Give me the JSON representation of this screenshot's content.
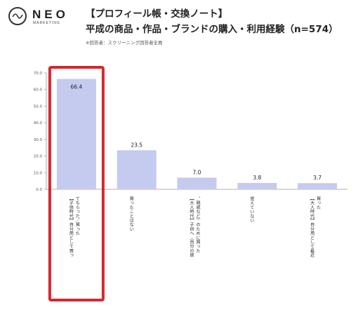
{
  "logo": {
    "name": "NEO",
    "sub": "MARKETING"
  },
  "header": {
    "title_line1": "【プロフィール帳・交換ノート】",
    "title_line2": "平成の商品・作品・ブランドの購入・利用経験（n=574）",
    "note": "※回答者：スクリーニング回答者全員"
  },
  "colors": {
    "bar": "#c5cbef",
    "highlight": "#d8262e",
    "axis": "#999999"
  },
  "chart_data": {
    "type": "bar",
    "categories": [
      "【子供時代】自分用として買ってもらった／買った",
      "買ったことはない",
      "【大人時代】子供へ（自分の娘、親戚など）のために買った",
      "覚えていない",
      "【大人時代】自分用として最近買った"
    ],
    "values": [
      66.4,
      23.5,
      7.0,
      3.8,
      3.7
    ],
    "value_labels": [
      "66.4",
      "23.5",
      "7.0",
      "3.8",
      "3.7"
    ],
    "yticks": [
      "0.0",
      "10.0",
      "20.0",
      "30.0",
      "40.0",
      "50.0",
      "60.0",
      "70.0"
    ],
    "ylim": [
      0,
      70
    ],
    "highlighted_index": 0,
    "grid": false
  }
}
